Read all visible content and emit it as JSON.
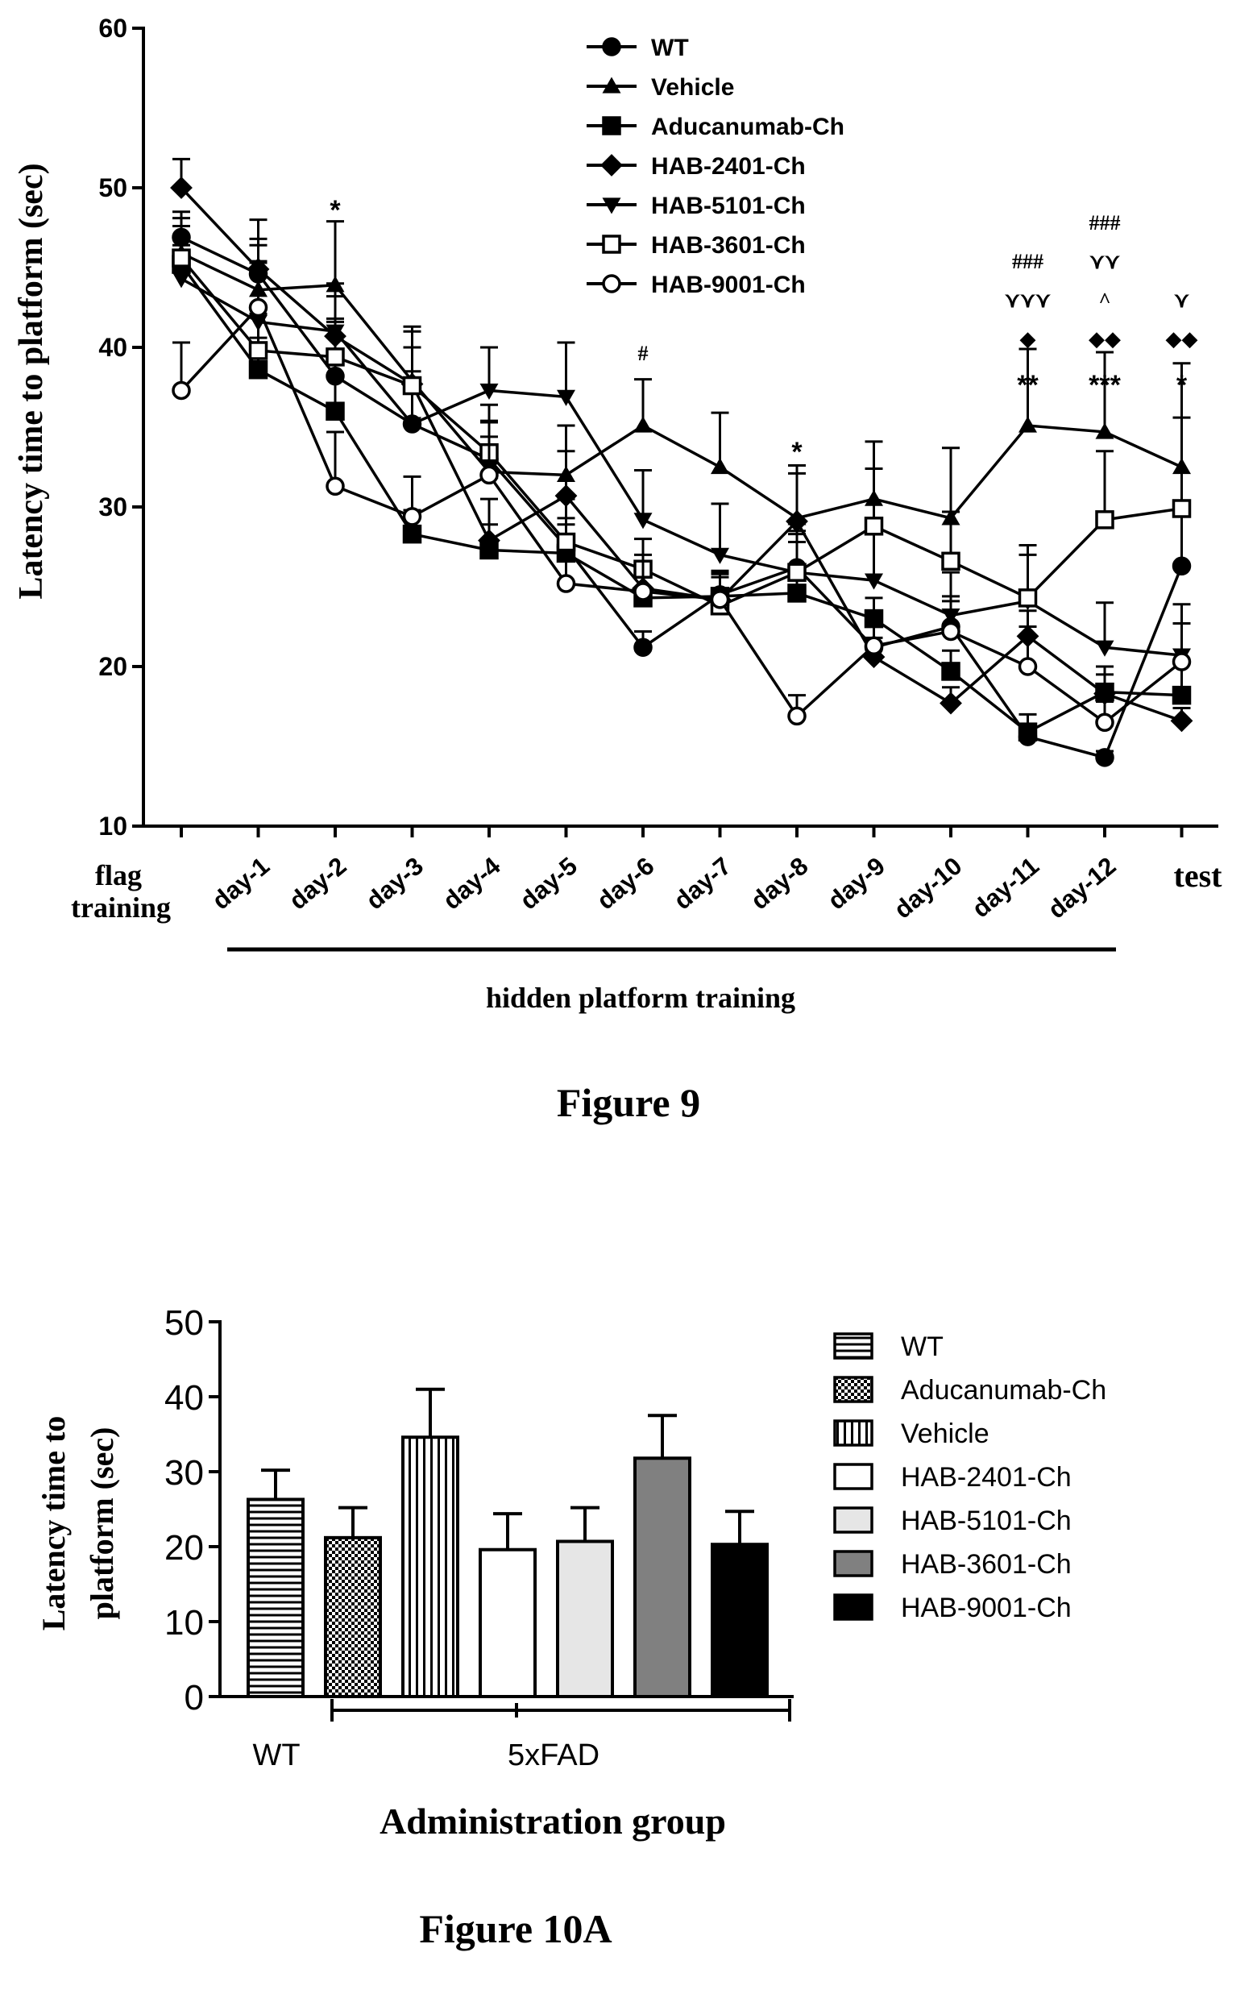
{
  "figure9": {
    "caption": "Figure 9",
    "ylabel": "Latency time to platform (sec)",
    "group_label": "hidden platform training",
    "chart_data": {
      "type": "line",
      "ylim": [
        10,
        60
      ],
      "yticks": [
        10,
        20,
        30,
        40,
        50,
        60
      ],
      "categories": [
        "flag training",
        "day-1",
        "day-2",
        "day-3",
        "day-4",
        "day-5",
        "day-6",
        "day-7",
        "day-8",
        "day-9",
        "day-10",
        "day-11",
        "day-12",
        "test"
      ],
      "category_labels": [
        "flag|training",
        "day-1",
        "day-2",
        "day-3",
        "day-4",
        "day-5",
        "day-6",
        "day-7",
        "day-8",
        "day-9",
        "day-10",
        "day-11",
        "day-12",
        "test"
      ],
      "legend_position": "top-right",
      "series": [
        {
          "name": "WT",
          "marker": "circle-filled",
          "values": [
            46.9,
            44.6,
            38.2,
            35.2,
            33.0,
            27.5,
            21.2,
            24.5,
            26.2,
            21.2,
            22.5,
            15.6,
            14.3,
            26.3
          ],
          "errors": [
            1.6,
            2.2,
            3.4,
            2.4,
            2.3,
            1.8,
            1.0,
            1.3,
            1.6,
            1.4,
            1.6,
            0.8,
            0.4,
            3.6
          ]
        },
        {
          "name": "Vehicle",
          "marker": "triangle-up-filled",
          "values": [
            45.9,
            43.6,
            43.9,
            37.9,
            32.2,
            32.0,
            35.1,
            32.5,
            29.3,
            30.5,
            29.3,
            35.1,
            34.7,
            32.5
          ],
          "errors": [
            2.2,
            2.8,
            4.0,
            3.4,
            3.2,
            3.1,
            2.9,
            3.4,
            3.3,
            3.6,
            4.4,
            4.8,
            5.0,
            6.5
          ]
        },
        {
          "name": "Aducanumab-Ch",
          "marker": "square-filled",
          "values": [
            45.2,
            38.6,
            36.0,
            28.3,
            27.3,
            27.1,
            24.3,
            24.4,
            24.6,
            23.0,
            19.7,
            15.9,
            18.4,
            18.2
          ],
          "errors": [
            1.8,
            2.0,
            2.2,
            1.5,
            1.6,
            1.8,
            1.3,
            1.2,
            1.5,
            1.3,
            1.3,
            1.1,
            1.6,
            2.2
          ]
        },
        {
          "name": "HAB-2401-Ch",
          "marker": "diamond-filled",
          "values": [
            50.0,
            44.9,
            40.7,
            37.7,
            27.9,
            30.7,
            24.9,
            24.2,
            29.1,
            20.6,
            17.7,
            21.9,
            18.3,
            16.6
          ],
          "errors": [
            1.8,
            3.1,
            2.5,
            2.3,
            2.6,
            2.8,
            1.6,
            1.6,
            3.0,
            1.2,
            1.0,
            1.6,
            1.2,
            0.8
          ]
        },
        {
          "name": "HAB-5101-Ch",
          "marker": "triangle-down-filled",
          "values": [
            44.3,
            41.6,
            41.0,
            35.2,
            37.3,
            36.9,
            29.2,
            27.0,
            25.9,
            25.4,
            23.2,
            24.1,
            21.2,
            20.7
          ],
          "errors": [
            2.1,
            3.8,
            3.0,
            3.3,
            2.7,
            3.4,
            3.1,
            3.2,
            2.6,
            2.9,
            2.7,
            2.9,
            2.8,
            3.2
          ]
        },
        {
          "name": "HAB-3601-Ch",
          "marker": "square-open",
          "values": [
            45.6,
            39.8,
            39.4,
            37.6,
            33.4,
            27.8,
            26.1,
            23.8,
            25.9,
            28.8,
            26.6,
            24.3,
            29.2,
            29.9
          ],
          "errors": [
            2.0,
            2.3,
            2.4,
            3.4,
            3.0,
            2.7,
            1.9,
            2.1,
            2.4,
            3.6,
            3.1,
            3.3,
            4.3,
            5.7
          ]
        },
        {
          "name": "HAB-9001-Ch",
          "marker": "circle-open",
          "values": [
            37.3,
            42.5,
            31.3,
            29.4,
            32.0,
            25.2,
            24.7,
            24.2,
            16.9,
            21.3,
            22.2,
            20.0,
            16.5,
            20.3
          ],
          "errors": [
            3.0,
            2.8,
            3.4,
            2.5,
            2.4,
            2.0,
            2.3,
            1.8,
            1.3,
            1.6,
            2.2,
            2.5,
            1.3,
            2.4
          ]
        }
      ],
      "annotations": [
        {
          "category": "day-2",
          "rows": [
            "*"
          ]
        },
        {
          "category": "day-6",
          "rows": [
            "#"
          ]
        },
        {
          "category": "day-8",
          "rows": [
            "*"
          ]
        },
        {
          "category": "day-11",
          "rows": [
            "###",
            "⋎⋎⋎",
            "◆",
            "**"
          ]
        },
        {
          "category": "day-12",
          "rows": [
            "###",
            "⋎⋎",
            "^",
            "◆◆",
            "***"
          ]
        },
        {
          "category": "test",
          "rows": [
            "⋎",
            "◆◆",
            "*"
          ]
        }
      ]
    }
  },
  "figure10a": {
    "caption": "Figure 10A",
    "ylabel_line1": "Latency time to",
    "ylabel_line2": "platform (sec)",
    "xlabel": "Administration group",
    "group_labels": {
      "wt": "WT",
      "fad": "5xFAD"
    },
    "chart_data": {
      "type": "bar",
      "ylim": [
        0,
        50
      ],
      "yticks": [
        0,
        10,
        20,
        30,
        40,
        50
      ],
      "categories": [
        "WT",
        "Aducanumab-Ch",
        "Vehicle",
        "HAB-2401-Ch",
        "HAB-5101-Ch",
        "HAB-3601-Ch",
        "HAB-9001-Ch"
      ],
      "values": [
        26.3,
        21.2,
        34.6,
        19.6,
        20.7,
        31.8,
        20.3
      ],
      "errors": [
        3.9,
        4.0,
        6.4,
        4.8,
        4.5,
        5.7,
        4.4
      ],
      "fills": [
        "hstripe",
        "checker",
        "vstripe",
        "white",
        "lightgray",
        "#808080",
        "#000000"
      ],
      "legend_position": "right",
      "legend": [
        "WT",
        "Aducanumab-Ch",
        "Vehicle",
        "HAB-2401-Ch",
        "HAB-5101-Ch",
        "HAB-3601-Ch",
        "HAB-9001-Ch"
      ]
    }
  }
}
